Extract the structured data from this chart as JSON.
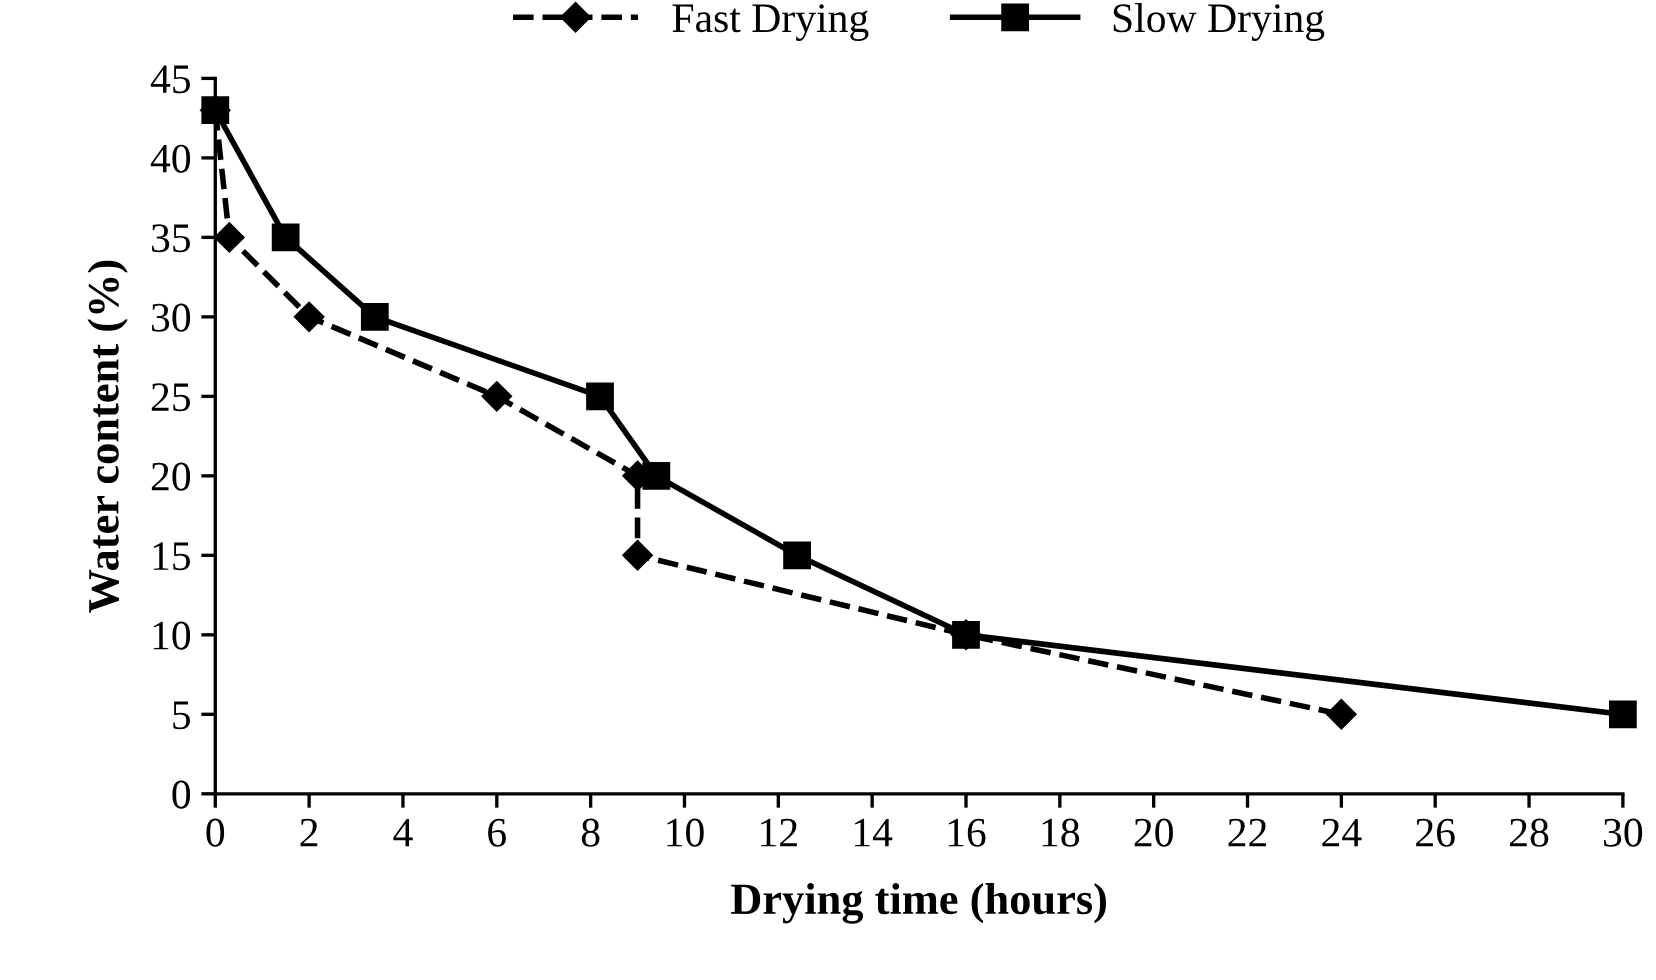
{
  "chart_data": {
    "type": "line",
    "xlabel": "Drying time (hours)",
    "ylabel": "Water content (%)",
    "xlim": [
      0,
      30
    ],
    "xticks": [
      0,
      2,
      4,
      6,
      8,
      10,
      12,
      14,
      16,
      18,
      20,
      22,
      24,
      26,
      28,
      30
    ],
    "ylim": [
      0,
      45
    ],
    "yticks": [
      0,
      5,
      10,
      15,
      20,
      25,
      30,
      35,
      40,
      45
    ],
    "grid": false,
    "legend": "top",
    "series": [
      {
        "name": "Fast Drying",
        "color": "#000000",
        "marker": "diamond",
        "line_style": "dashed",
        "x": [
          0,
          0.3,
          2,
          6,
          9,
          9,
          16,
          24
        ],
        "values": [
          43,
          35,
          30,
          25,
          20,
          15,
          10,
          5
        ]
      },
      {
        "name": "Slow Drying",
        "color": "#000000",
        "marker": "square",
        "line_style": "solid",
        "x": [
          0,
          1.5,
          3.4,
          8.2,
          9.4,
          12.4,
          16,
          30
        ],
        "values": [
          43,
          35,
          30,
          25,
          20,
          15,
          10,
          5
        ]
      }
    ]
  }
}
